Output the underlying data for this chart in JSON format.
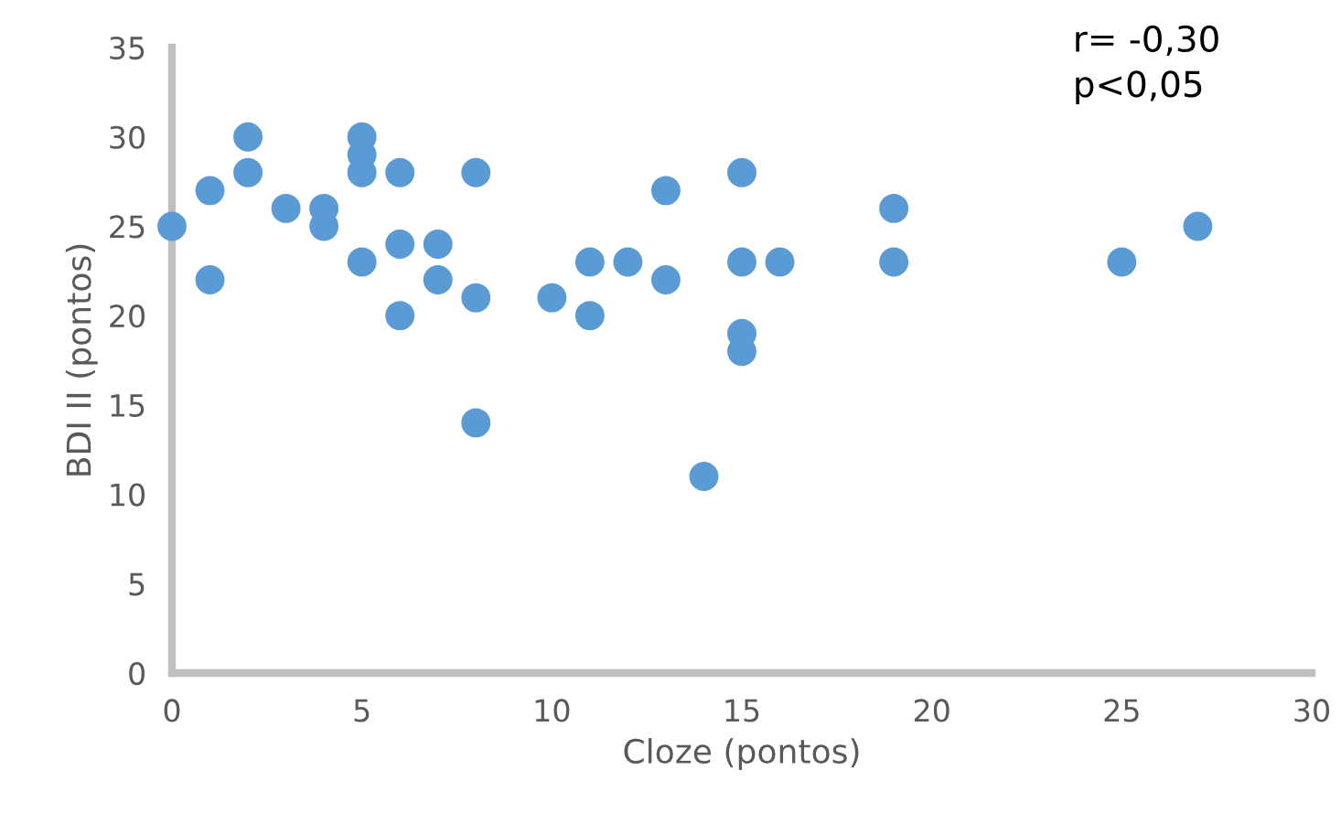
{
  "chart_data": {
    "type": "scatter",
    "xlabel": "Cloze (pontos)",
    "ylabel": "BDI II (pontos)",
    "x": [
      0,
      1,
      1,
      2,
      2,
      3,
      4,
      4,
      5,
      5,
      5,
      5,
      6,
      6,
      6,
      7,
      7,
      8,
      8,
      8,
      10,
      11,
      11,
      12,
      13,
      13,
      14,
      15,
      15,
      15,
      15,
      16,
      19,
      19,
      25,
      27
    ],
    "values": [
      25,
      27,
      22,
      30,
      28,
      26,
      26,
      25,
      30,
      29,
      28,
      23,
      28,
      24,
      20,
      24,
      22,
      28,
      21,
      14,
      21,
      23,
      20,
      23,
      27,
      22,
      11,
      28,
      23,
      19,
      18,
      23,
      26,
      23,
      23,
      25
    ],
    "color": "#5b9bd5",
    "marker": "circle",
    "xlim": [
      0,
      30
    ],
    "xticks": [
      0,
      5,
      10,
      15,
      20,
      25,
      30
    ],
    "ylim": [
      0,
      35
    ],
    "yticks": [
      0,
      5,
      10,
      15,
      20,
      25,
      30,
      35
    ],
    "grid": false,
    "annotations": [
      "r= -0,30\np<0,05"
    ]
  }
}
